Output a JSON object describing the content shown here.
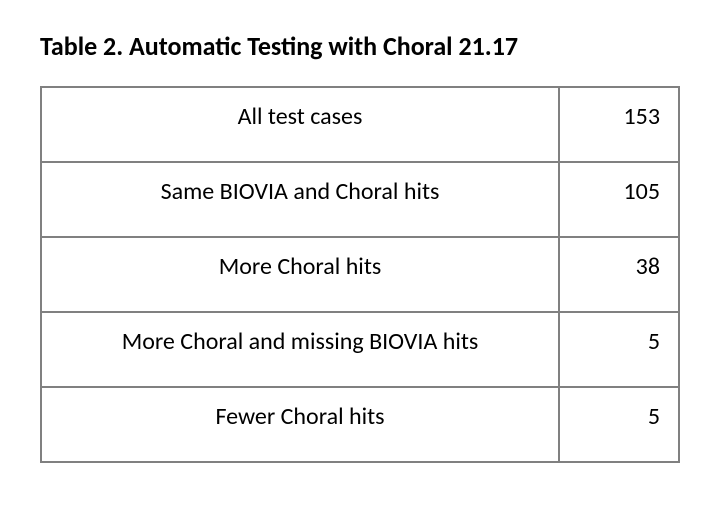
{
  "title": "Table 2. Automatic Testing with Choral 21.17",
  "title_fontsize": 26,
  "cell_fontsize": 24,
  "border_color": "#808080",
  "text_color": "#000000",
  "background_color": "#ffffff",
  "rows": [
    {
      "label": "All test cases",
      "value": "153"
    },
    {
      "label": "Same BIOVIA and Choral hits",
      "value": "105"
    },
    {
      "label": "More Choral hits",
      "value": "38"
    },
    {
      "label": "More Choral and missing BIOVIA hits",
      "value": "5"
    },
    {
      "label": "Fewer Choral hits",
      "value": "5"
    }
  ]
}
